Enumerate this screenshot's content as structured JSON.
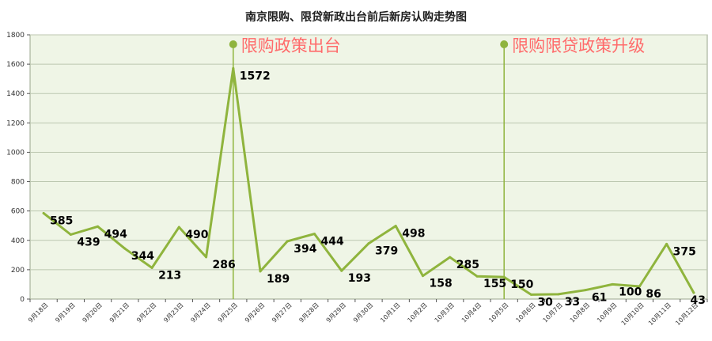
{
  "chart_data": {
    "type": "line",
    "title": "南京限购、限贷新政出台前后新房认购走势图",
    "xlabel": "",
    "ylabel": "",
    "ylim": [
      0,
      1800
    ],
    "yticks": [
      "0",
      "200",
      "400",
      "600",
      "800",
      "1000",
      "1200",
      "1400",
      "1600",
      "1800"
    ],
    "categories": [
      "9月18日",
      "9月19日",
      "9月20日",
      "9月21日",
      "9月22日",
      "9月23日",
      "9月24日",
      "9月25日",
      "9月26日",
      "9月27日",
      "9月28日",
      "9月29日",
      "9月30日",
      "10月1日",
      "10月2日",
      "10月3日",
      "10月4日",
      "10月5日",
      "10月6日",
      "10月7日",
      "10月8日",
      "10月9日",
      "10月10日",
      "10月11日",
      "10月12日"
    ],
    "values": [
      585,
      439,
      494,
      344,
      213,
      490,
      286,
      1572,
      189,
      394,
      444,
      193,
      379,
      498,
      158,
      285,
      155,
      150,
      30,
      33,
      61,
      100,
      86,
      375,
      43
    ],
    "data_labels": [
      "585",
      "439",
      "494",
      "344",
      "213",
      "490",
      "286",
      "1572",
      "189",
      "394",
      "444",
      "193",
      "379",
      "498",
      "158",
      "285",
      "155",
      "150",
      "30",
      "33",
      "61",
      "100",
      "86",
      "375",
      "43"
    ],
    "grid": true,
    "legend": "none",
    "colors": {
      "line": "#8fb43d",
      "plot_background": "#eff5e6",
      "grid": "#bcc7b0",
      "annotation_text": "#ff6b6b"
    },
    "annotations": [
      {
        "text": "限购政策出台",
        "category_index": 7
      },
      {
        "text": "限购限贷政策升级",
        "category_index": 17
      }
    ]
  }
}
